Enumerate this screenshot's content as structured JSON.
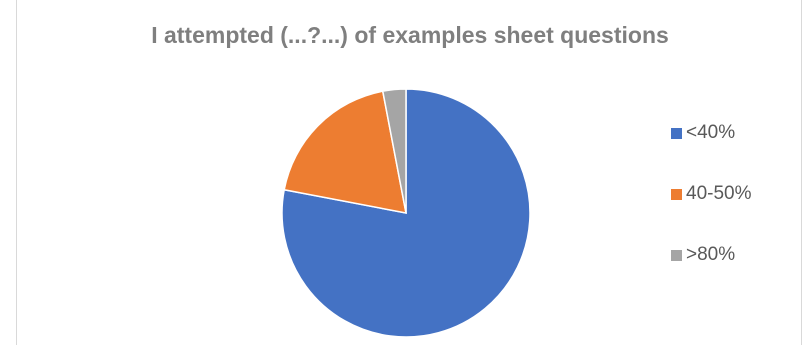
{
  "chart_data": {
    "type": "pie",
    "title": "I attempted (...?...) of examples sheet questions",
    "legend_position": "right",
    "series": [
      {
        "values": [
          78,
          19,
          3
        ]
      }
    ],
    "categories": [
      "<40%",
      "40-50%",
      ">80%"
    ],
    "colors": [
      "#4472c4",
      "#ed7d31",
      "#a5a5a5"
    ],
    "start_angle_deg": 0,
    "direction": "clockwise"
  }
}
